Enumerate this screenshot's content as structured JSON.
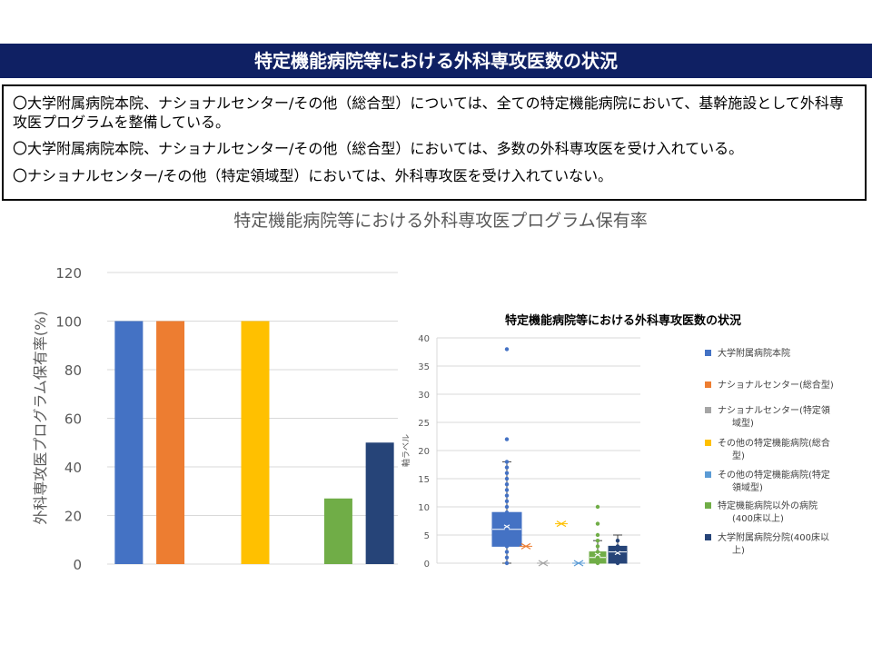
{
  "header": {
    "title": "特定機能病院等における外科専攻医数の状況"
  },
  "summary": {
    "lines": [
      "〇大学附属病院本院、ナショナルセンター/その他（総合型）については、全ての特定機能病院において、基幹施設として外科専攻医プログラムを整備している。",
      "〇大学附属病院本院、ナショナルセンター/その他（総合型）においては、多数の外科専攻医を受け入れている。",
      "〇ナショナルセンター/その他（特定領域型）においては、外科専攻医を受け入れていない。"
    ]
  },
  "chart_data": [
    {
      "type": "bar",
      "title": "特定機能病院等における外科専攻医プログラム保有率",
      "ylabel": "外科専攻医プログラム保有率(%)",
      "ylim": [
        0,
        120
      ],
      "yticks": [
        "0",
        "20",
        "40",
        "60",
        "80",
        "100",
        "120"
      ],
      "categories": [
        "大学附属病院本院",
        "ナショナルセンター(総合型)",
        "ナショナルセンター(特定領域型)",
        "その他の特定機能病院(総合型)",
        "その他の特定機能病院(特定領域型)",
        "特定機能病院以外の病院(400床以上)",
        "大学附属病院分院(400床以上)"
      ],
      "values": [
        100,
        100,
        0,
        100,
        0,
        27,
        50
      ],
      "colors": [
        "#4472c4",
        "#ed7d31",
        "#a5a5a5",
        "#ffc000",
        "#5b9bd5",
        "#70ad47",
        "#264478"
      ]
    },
    {
      "type": "box",
      "title": "特定機能病院等における外科専攻医数の状況",
      "ylabel": "軸ラベル",
      "ylim": [
        0,
        40
      ],
      "yticks": [
        "0",
        "5",
        "10",
        "15",
        "20",
        "25",
        "30",
        "35",
        "40"
      ],
      "legend_position": "right",
      "series": [
        {
          "name": "大学附属病院本院",
          "color": "#4472c4",
          "q1": 3,
          "median": 6,
          "q3": 9,
          "mean": 6.5,
          "whisker_low": 0,
          "whisker_high": 18,
          "points": [
            0,
            1,
            2,
            3,
            4,
            5,
            6,
            7,
            8,
            9,
            10,
            11,
            12,
            13,
            14,
            15,
            16,
            17,
            18,
            22,
            38
          ]
        },
        {
          "name": "ナショナルセンター(総合型)",
          "color": "#ed7d31",
          "q1": 3,
          "median": 3,
          "q3": 3,
          "mean": 3,
          "whisker_low": 3,
          "whisker_high": 3,
          "points": []
        },
        {
          "name": "ナショナルセンター(特定領域型)",
          "color": "#a5a5a5",
          "q1": 0,
          "median": 0,
          "q3": 0,
          "mean": 0,
          "whisker_low": 0,
          "whisker_high": 0,
          "points": []
        },
        {
          "name": "その他の特定機能病院(総合型)",
          "color": "#ffc000",
          "q1": 7,
          "median": 7,
          "q3": 7,
          "mean": 7,
          "whisker_low": 7,
          "whisker_high": 7,
          "points": []
        },
        {
          "name": "その他の特定機能病院(特定領域型)",
          "color": "#5b9bd5",
          "q1": 0,
          "median": 0,
          "q3": 0,
          "mean": 0,
          "whisker_low": 0,
          "whisker_high": 0,
          "points": []
        },
        {
          "name": "特定機能病院以外の病院(400床以上)",
          "color": "#70ad47",
          "q1": 0,
          "median": 1,
          "q3": 2,
          "mean": 1.5,
          "whisker_low": 0,
          "whisker_high": 4,
          "points": [
            0,
            1,
            2,
            3,
            4,
            5,
            7,
            10
          ]
        },
        {
          "name": "大学附属病院分院(400床以上)",
          "color": "#264478",
          "q1": 0,
          "median": 2,
          "q3": 3,
          "mean": 1.8,
          "whisker_low": 0,
          "whisker_high": 5,
          "points": [
            0,
            1,
            2,
            3,
            4
          ]
        }
      ]
    }
  ]
}
